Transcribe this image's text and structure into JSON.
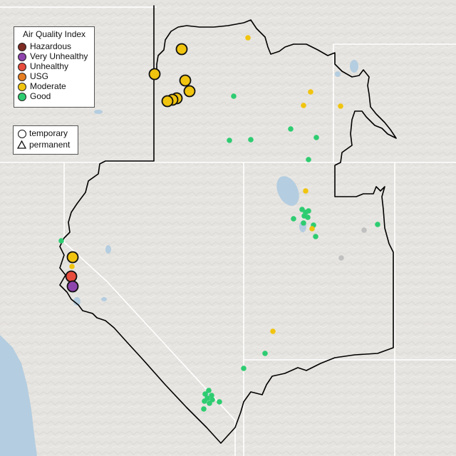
{
  "legend": {
    "title": "Air Quality Index",
    "categories": [
      {
        "label": "Hazardous",
        "color": "#7e2b22",
        "icon": "hazardous-swatch-icon"
      },
      {
        "label": "Very Unhealthy",
        "color": "#8e44ad",
        "icon": "very-unhealthy-swatch-icon"
      },
      {
        "label": "Unhealthy",
        "color": "#e74c3c",
        "icon": "unhealthy-swatch-icon"
      },
      {
        "label": "USG",
        "color": "#e67e22",
        "icon": "usg-swatch-icon"
      },
      {
        "label": "Moderate",
        "color": "#f1c40f",
        "icon": "moderate-swatch-icon"
      },
      {
        "label": "Good",
        "color": "#2ecc71",
        "icon": "good-swatch-icon"
      }
    ]
  },
  "monitor_legend": {
    "temporary": "temporary",
    "permanent": "permanent"
  },
  "colors": {
    "land": "#e6e4e0",
    "water": "#b4cde0",
    "state_borders": "#ffffff",
    "region_outline": "#000000",
    "no_data": "#c0c0c0"
  }
}
